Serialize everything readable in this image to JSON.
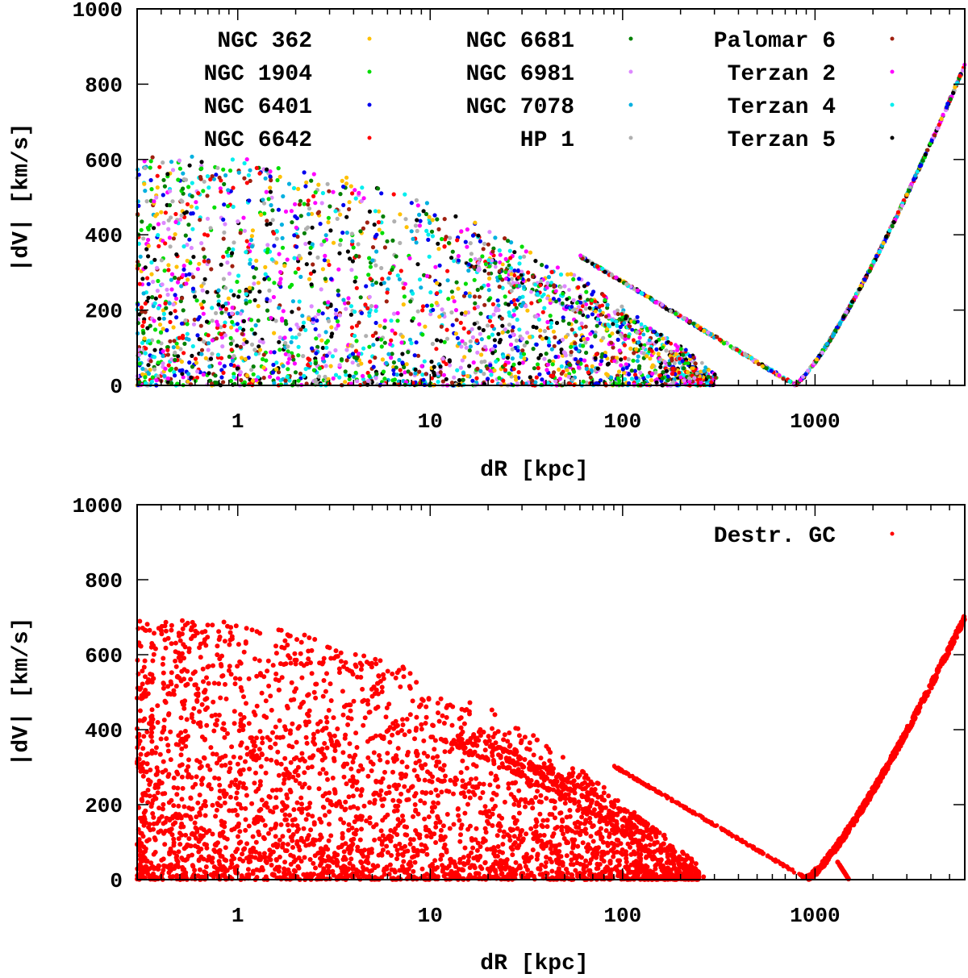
{
  "chart_data": [
    {
      "type": "scatter",
      "xscale": "log",
      "xlim": [
        0.3,
        6000
      ],
      "ylim": [
        0,
        1000
      ],
      "xlabel": "dR [kpc]",
      "ylabel": "|dV| [km/s]",
      "x_ticks": [
        1,
        10,
        100,
        1000
      ],
      "x_tick_labels": [
        "1",
        "10",
        "100",
        "1000"
      ],
      "y_ticks": [
        0,
        200,
        400,
        600,
        800,
        1000
      ],
      "y_tick_labels": [
        "0",
        "200",
        "400",
        "600",
        "800",
        "1000"
      ],
      "legend_position": "top",
      "legend_columns": 3,
      "series": [
        {
          "name": "NGC 362",
          "color": "#ffc000"
        },
        {
          "name": "NGC 1904",
          "color": "#00dd00"
        },
        {
          "name": "NGC 6401",
          "color": "#0000ee"
        },
        {
          "name": "NGC 6642",
          "color": "#ff0000"
        },
        {
          "name": "NGC 6681",
          "color": "#008000"
        },
        {
          "name": "NGC 6981",
          "color": "#dd88ff"
        },
        {
          "name": "NGC 7078",
          "color": "#00b0e0"
        },
        {
          "name": "HP 1",
          "color": "#b0b0b0"
        },
        {
          "name": "Palomar 6",
          "color": "#a02010"
        },
        {
          "name": "Terzan 2",
          "color": "#ff00ff"
        },
        {
          "name": "Terzan 4",
          "color": "#00eeee"
        },
        {
          "name": "Terzan 5",
          "color": "#000000"
        }
      ],
      "features": {
        "cloud_dR_range": [
          0.3,
          300
        ],
        "cloud_dV_max": 600,
        "recession_vertex": [
          780,
          0
        ],
        "recession_right_end": [
          6000,
          850
        ],
        "recession_left_start": [
          60,
          340
        ]
      }
    },
    {
      "type": "scatter",
      "xscale": "log",
      "xlim": [
        0.3,
        6000
      ],
      "ylim": [
        0,
        1000
      ],
      "xlabel": "dR [kpc]",
      "ylabel": "|dV| [km/s]",
      "x_ticks": [
        1,
        10,
        100,
        1000
      ],
      "x_tick_labels": [
        "1",
        "10",
        "100",
        "1000"
      ],
      "y_ticks": [
        0,
        200,
        400,
        600,
        800,
        1000
      ],
      "y_tick_labels": [
        "0",
        "200",
        "400",
        "600",
        "800",
        "1000"
      ],
      "legend_position": "top-right",
      "series": [
        {
          "name": "Destr. GC",
          "color": "#ff0000"
        }
      ],
      "features": {
        "cloud_dR_range": [
          0.3,
          250
        ],
        "cloud_dV_max": 680,
        "recession_vertex": [
          900,
          0
        ],
        "recession_right_end": [
          6000,
          700
        ],
        "small_branch": [
          [
            1300,
            50
          ],
          [
            1500,
            0
          ]
        ]
      }
    }
  ]
}
